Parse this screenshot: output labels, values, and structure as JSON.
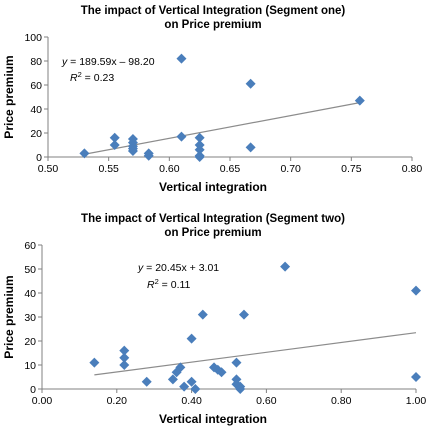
{
  "chart_data": [
    {
      "type": "scatter",
      "title": [
        "The impact of Vertical Integration (Segment one)",
        "on Price premium"
      ],
      "xlabel": "Vertical integration",
      "ylabel": "Price premium",
      "xlim": [
        0.5,
        0.8
      ],
      "ylim": [
        0,
        100
      ],
      "x_ticks": [
        "0.50",
        "0.55",
        "0.60",
        "0.65",
        "0.70",
        "0.75",
        "0.80"
      ],
      "y_ticks": [
        "0",
        "20",
        "40",
        "60",
        "80",
        "100"
      ],
      "points_x": [
        0.53,
        0.555,
        0.555,
        0.57,
        0.57,
        0.57,
        0.57,
        0.57,
        0.583,
        0.583,
        0.61,
        0.61,
        0.625,
        0.625,
        0.625,
        0.625,
        0.625,
        0.667,
        0.667,
        0.757
      ],
      "points_y": [
        3,
        16,
        10,
        15,
        12,
        9,
        7,
        5,
        3,
        1,
        17,
        82,
        16,
        10,
        6,
        1,
        0,
        61,
        8,
        47
      ],
      "trendline": {
        "slope": 189.59,
        "intercept": -98.2,
        "x_range": [
          0.53,
          0.757
        ]
      },
      "equation": {
        "prefix": "y",
        "text": " = 189.59x – 98.20"
      },
      "r_squared": {
        "prefix": "R",
        "sup": "2",
        "text": " = 0.23"
      },
      "marker_color": "#4a7ebb",
      "trend_color": "#8c8c8c",
      "grid": false
    },
    {
      "type": "scatter",
      "title": [
        "The impact of Vertical Integration (Segment two)",
        "on Price premium"
      ],
      "xlabel": "Vertical integration",
      "ylabel": "Price premium",
      "xlim": [
        0,
        1
      ],
      "ylim": [
        0,
        60
      ],
      "x_ticks": [
        "0.00",
        "0.20",
        "0.40",
        "0.60",
        "0.80",
        "1.00"
      ],
      "y_ticks": [
        "0",
        "10",
        "20",
        "30",
        "40",
        "50",
        "60"
      ],
      "points_x": [
        0.14,
        0.22,
        0.22,
        0.22,
        0.28,
        0.35,
        0.36,
        0.37,
        0.38,
        0.4,
        0.4,
        0.41,
        0.43,
        0.46,
        0.47,
        0.48,
        0.52,
        0.52,
        0.52,
        0.53,
        0.53,
        0.54,
        0.65,
        1.0,
        1.0
      ],
      "points_y": [
        11,
        16,
        13,
        10,
        3,
        4,
        7,
        9,
        1,
        21,
        3,
        0,
        31,
        9,
        8,
        7,
        11,
        4,
        2,
        1,
        0,
        31,
        51,
        41,
        5
      ],
      "trendline": {
        "slope": 20.45,
        "intercept": 3.01,
        "x_range": [
          0.14,
          1.0
        ]
      },
      "equation": {
        "prefix": "y",
        "text": " = 20.45x + 3.01"
      },
      "r_squared": {
        "prefix": "R",
        "sup": "2",
        "text": " = 0.11"
      },
      "marker_color": "#4a7ebb",
      "trend_color": "#8c8c8c",
      "grid": false
    }
  ]
}
